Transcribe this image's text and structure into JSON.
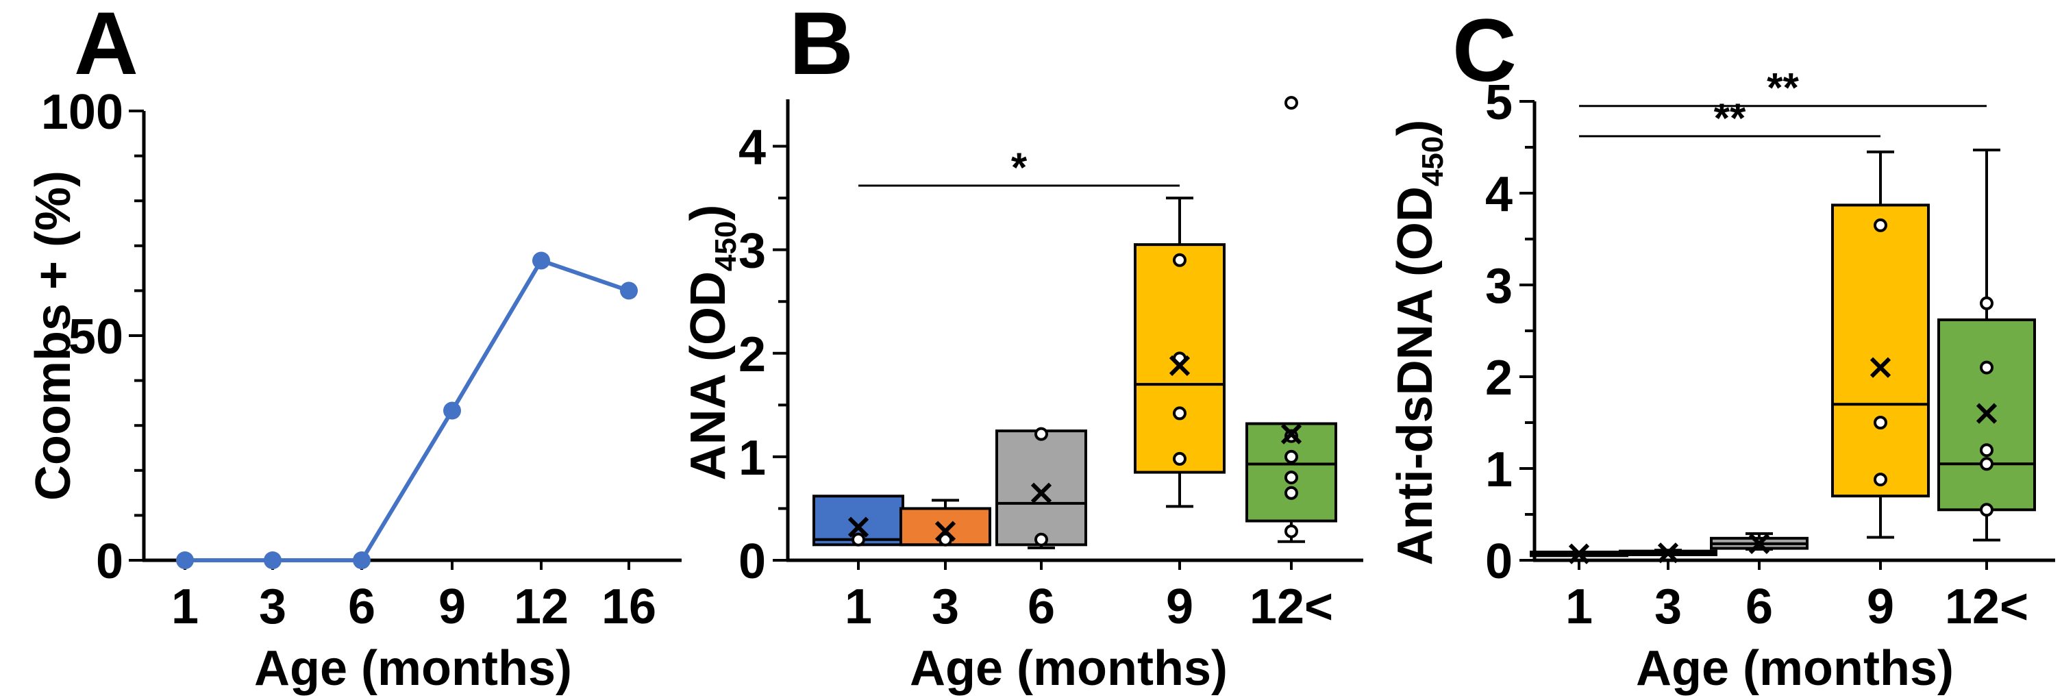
{
  "chart_data": [
    {
      "panel": "A",
      "type": "line",
      "xlabel": "Age (months)",
      "ylabel": "Coombs + (%)",
      "ylim": [
        0,
        100
      ],
      "yticks": [
        0,
        50,
        100
      ],
      "categories": [
        "1",
        "3",
        "6",
        "9",
        "12",
        "16"
      ],
      "x": [
        1,
        3,
        6,
        9,
        12,
        16
      ],
      "values": [
        0,
        0,
        0,
        33.3,
        66.7,
        60
      ],
      "color": "#4472c4"
    },
    {
      "panel": "B",
      "type": "box",
      "xlabel": "Age (months)",
      "ylabel_main": "ANA (OD",
      "ylabel_sub": "450",
      "ylabel_end": ")",
      "ylim": [
        0,
        4.5
      ],
      "yticks": [
        0,
        1,
        2,
        3,
        4
      ],
      "categories": [
        "1",
        "3",
        "6",
        "9",
        "12<"
      ],
      "boxes": [
        {
          "color": "#4472c4",
          "q1": 0.15,
          "median": 0.2,
          "q3": 0.62,
          "min": 0.15,
          "max": 0.62,
          "mean": 0.32,
          "points": [
            0.2
          ]
        },
        {
          "color": "#ed7d31",
          "q1": 0.15,
          "median": 0.15,
          "q3": 0.5,
          "min": 0.15,
          "max": 0.58,
          "mean": 0.28,
          "points": [
            0.2
          ]
        },
        {
          "color": "#a5a5a5",
          "q1": 0.15,
          "median": 0.55,
          "q3": 1.25,
          "min": 0.12,
          "max": 1.25,
          "mean": 0.65,
          "points": [
            0.2,
            1.22
          ]
        },
        {
          "color": "#ffc000",
          "q1": 0.85,
          "median": 1.7,
          "q3": 3.05,
          "min": 0.52,
          "max": 3.5,
          "mean": 1.88,
          "points": [
            0.98,
            1.42,
            1.95,
            2.9
          ]
        },
        {
          "color": "#70ad47",
          "q1": 0.38,
          "median": 0.93,
          "q3": 1.32,
          "min": 0.18,
          "max": 1.32,
          "mean": 1.22,
          "points": [
            0.28,
            0.65,
            0.8,
            1.0,
            1.2,
            4.42
          ]
        }
      ],
      "sig": [
        {
          "from": 0,
          "to": 3,
          "y": 3.62,
          "label": "*"
        }
      ]
    },
    {
      "panel": "C",
      "type": "box",
      "xlabel": "Age (months)",
      "ylabel_main": "Anti-dsDNA (OD",
      "ylabel_sub": "450",
      "ylabel_end": ")",
      "ylim": [
        0,
        5
      ],
      "yticks": [
        0,
        1,
        2,
        3,
        4,
        5
      ],
      "categories": [
        "1",
        "3",
        "6",
        "9",
        "12<"
      ],
      "boxes": [
        {
          "color": "#4472c4",
          "q1": 0.05,
          "median": 0.07,
          "q3": 0.09,
          "min": 0.05,
          "max": 0.09,
          "mean": 0.07,
          "points": []
        },
        {
          "color": "#ed7d31",
          "q1": 0.06,
          "median": 0.08,
          "q3": 0.1,
          "min": 0.06,
          "max": 0.11,
          "mean": 0.08,
          "points": []
        },
        {
          "color": "#a5a5a5",
          "q1": 0.13,
          "median": 0.18,
          "q3": 0.24,
          "min": 0.12,
          "max": 0.29,
          "mean": 0.18,
          "points": []
        },
        {
          "color": "#ffc000",
          "q1": 0.7,
          "median": 1.7,
          "q3": 3.87,
          "min": 0.25,
          "max": 4.45,
          "mean": 2.1,
          "points": [
            0.88,
            1.5,
            3.65
          ]
        },
        {
          "color": "#70ad47",
          "q1": 0.55,
          "median": 1.05,
          "q3": 2.62,
          "min": 0.22,
          "max": 4.47,
          "mean": 1.6,
          "points": [
            0.55,
            1.05,
            1.2,
            2.1,
            2.8
          ]
        }
      ],
      "sig": [
        {
          "from": 0,
          "to": 3,
          "y": 4.62,
          "label": "**"
        },
        {
          "from": 0,
          "to": 4,
          "y": 4.95,
          "label": "**"
        }
      ]
    }
  ]
}
